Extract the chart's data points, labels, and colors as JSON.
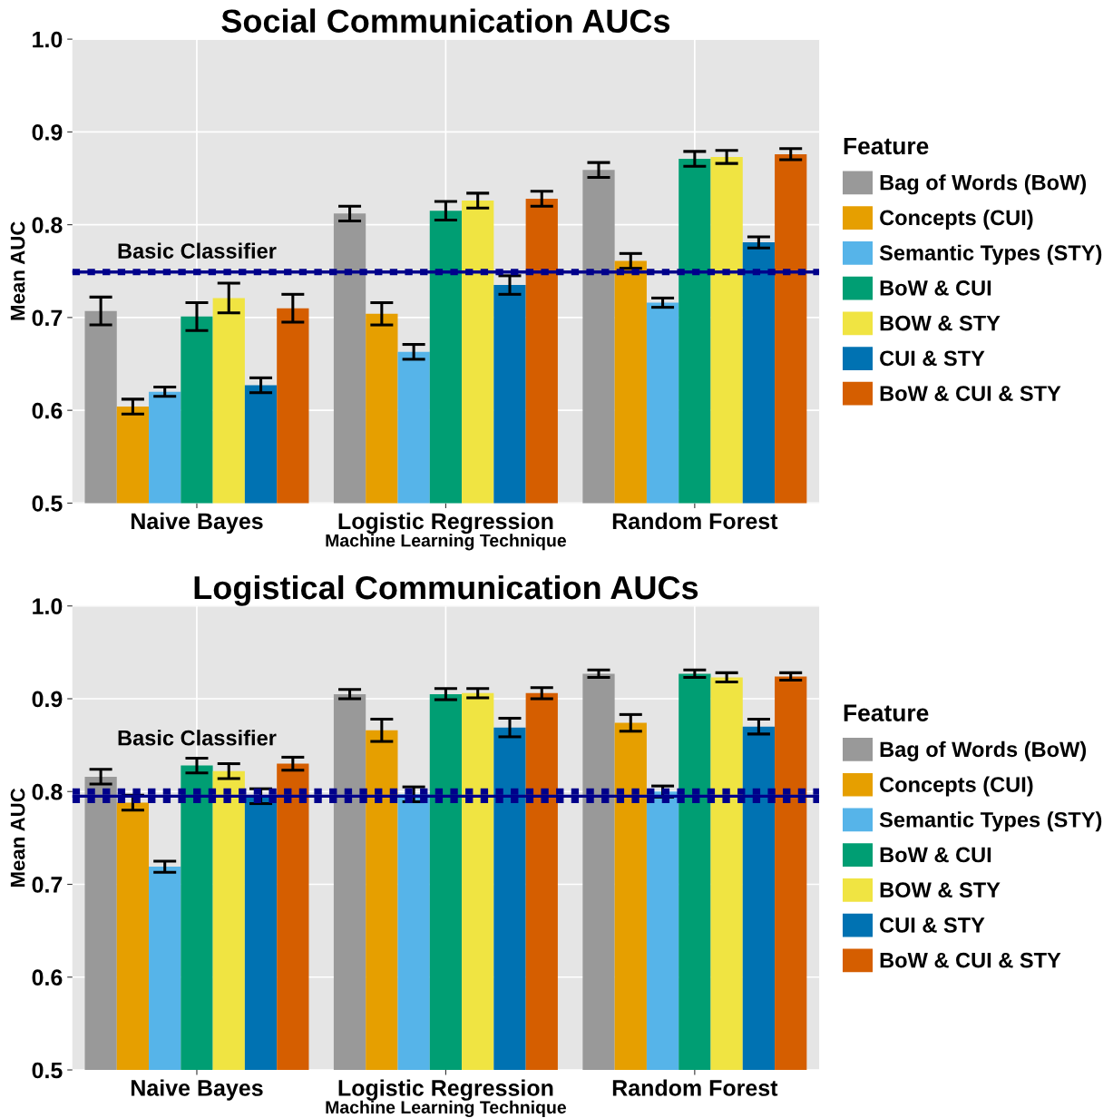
{
  "chart_data": [
    {
      "type": "bar",
      "title": "Social Communication AUCs",
      "xlabel": "Machine Learning Technique",
      "ylabel": "Mean AUC",
      "legend_title": "Feature",
      "categories": [
        "Naive Bayes",
        "Logistic Regression",
        "Random Forest"
      ],
      "series": [
        {
          "name": "Bag of Words (BoW)",
          "color": "#999999",
          "values": [
            0.707,
            0.812,
            0.859
          ],
          "errors": [
            0.015,
            0.008,
            0.008
          ]
        },
        {
          "name": "Concepts (CUI)",
          "color": "#e69f00",
          "values": [
            0.604,
            0.704,
            0.761
          ],
          "errors": [
            0.008,
            0.012,
            0.008
          ]
        },
        {
          "name": "Semantic Types (STY)",
          "color": "#56b4e9",
          "values": [
            0.62,
            0.663,
            0.716
          ],
          "errors": [
            0.005,
            0.008,
            0.005
          ]
        },
        {
          "name": "BoW & CUI",
          "color": "#009e73",
          "values": [
            0.701,
            0.815,
            0.871
          ],
          "errors": [
            0.015,
            0.01,
            0.008
          ]
        },
        {
          "name": "BOW & STY",
          "color": "#f0e442",
          "values": [
            0.721,
            0.826,
            0.873
          ],
          "errors": [
            0.016,
            0.008,
            0.007
          ]
        },
        {
          "name": "CUI & STY",
          "color": "#0072b2",
          "values": [
            0.627,
            0.735,
            0.781
          ],
          "errors": [
            0.008,
            0.01,
            0.006
          ]
        },
        {
          "name": "BoW & CUI & STY",
          "color": "#d55e00",
          "values": [
            0.71,
            0.828,
            0.876
          ],
          "errors": [
            0.015,
            0.008,
            0.006
          ]
        }
      ],
      "ylim": [
        0.5,
        1.0
      ],
      "yticks": [
        {
          "value": 0.5,
          "label": "0.5"
        },
        {
          "value": 0.6,
          "label": "0.6"
        },
        {
          "value": 0.7,
          "label": "0.7"
        },
        {
          "value": 0.8,
          "label": "0.8"
        },
        {
          "value": 0.9,
          "label": "0.9"
        },
        {
          "value": 1.0,
          "label": "1.0"
        }
      ],
      "ref_lines": [
        {
          "axis": "y",
          "value": 0.749,
          "label": "Basic Classifier",
          "color": "#00008b",
          "line_style": "solid"
        },
        {
          "axis": "y",
          "value": 0.749,
          "color": "#00008b",
          "line_style": "dashed"
        }
      ],
      "grid": true,
      "legend": "right"
    },
    {
      "type": "bar",
      "title": "Logistical Communication AUCs",
      "xlabel": "Machine Learning Technique",
      "ylabel": "Mean AUC",
      "legend_title": "Feature",
      "categories": [
        "Naive Bayes",
        "Logistic Regression",
        "Random Forest"
      ],
      "series": [
        {
          "name": "Bag of Words (BoW)",
          "color": "#999999",
          "values": [
            0.816,
            0.905,
            0.927
          ],
          "errors": [
            0.008,
            0.005,
            0.004
          ]
        },
        {
          "name": "Concepts (CUI)",
          "color": "#e69f00",
          "values": [
            0.788,
            0.866,
            0.874
          ],
          "errors": [
            0.008,
            0.012,
            0.009
          ]
        },
        {
          "name": "Semantic Types (STY)",
          "color": "#56b4e9",
          "values": [
            0.719,
            0.797,
            0.8
          ],
          "errors": [
            0.006,
            0.008,
            0.006
          ]
        },
        {
          "name": "BoW & CUI",
          "color": "#009e73",
          "values": [
            0.828,
            0.905,
            0.927
          ],
          "errors": [
            0.008,
            0.006,
            0.004
          ]
        },
        {
          "name": "BOW & STY",
          "color": "#f0e442",
          "values": [
            0.822,
            0.906,
            0.923
          ],
          "errors": [
            0.008,
            0.005,
            0.005
          ]
        },
        {
          "name": "CUI & STY",
          "color": "#0072b2",
          "values": [
            0.795,
            0.869,
            0.87
          ],
          "errors": [
            0.008,
            0.01,
            0.008
          ]
        },
        {
          "name": "BoW & CUI & STY",
          "color": "#d55e00",
          "values": [
            0.83,
            0.906,
            0.924
          ],
          "errors": [
            0.007,
            0.006,
            0.004
          ]
        }
      ],
      "ylim": [
        0.5,
        1.0
      ],
      "yticks": [
        {
          "value": 0.5,
          "label": "0.5"
        },
        {
          "value": 0.6,
          "label": "0.6"
        },
        {
          "value": 0.7,
          "label": "0.7"
        },
        {
          "value": 0.8,
          "label": "0.8"
        },
        {
          "value": 0.9,
          "label": "0.9"
        },
        {
          "value": 1.0,
          "label": "1.0"
        }
      ],
      "ref_lines": [
        {
          "axis": "y",
          "value": 0.795,
          "label": "Basic Classifier",
          "color": "#00008b",
          "line_style": "solid"
        },
        {
          "axis": "y",
          "value": 0.8,
          "color": "#00008b",
          "line_style": "dashed"
        },
        {
          "axis": "y",
          "value": 0.791,
          "color": "#00008b",
          "line_style": "dashed"
        }
      ],
      "grid": true,
      "legend": "right"
    }
  ]
}
